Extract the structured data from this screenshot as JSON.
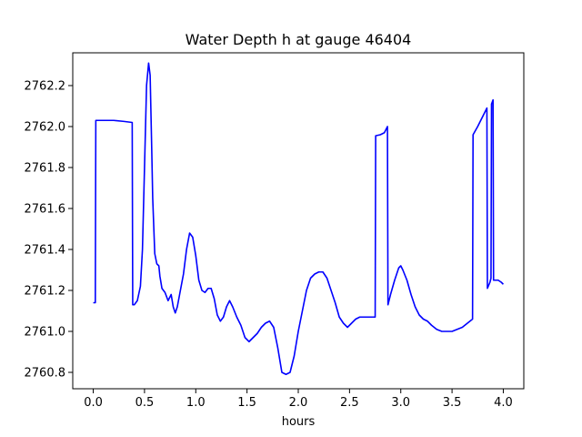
{
  "chart_data": {
    "type": "line",
    "title": "Water Depth h at gauge 46404",
    "xlabel": "hours",
    "ylabel": "",
    "xlim": [
      -0.2,
      4.2
    ],
    "ylim": [
      2760.72,
      2762.36
    ],
    "grid": false,
    "xticks": [
      0.0,
      0.5,
      1.0,
      1.5,
      2.0,
      2.5,
      3.0,
      3.5,
      4.0
    ],
    "xtick_labels": [
      "0.0",
      "0.5",
      "1.0",
      "1.5",
      "2.0",
      "2.5",
      "3.0",
      "3.5",
      "4.0"
    ],
    "yticks": [
      2760.8,
      2761.0,
      2761.2,
      2761.4,
      2761.6,
      2761.8,
      2762.0,
      2762.2
    ],
    "ytick_labels": [
      "2760.8",
      "2761.0",
      "2761.2",
      "2761.4",
      "2761.6",
      "2761.8",
      "2762.0",
      "2762.2"
    ],
    "series": [
      {
        "color": "#0000ff",
        "x": [
          0.0,
          0.02,
          0.025,
          0.1,
          0.2,
          0.3,
          0.38,
          0.385,
          0.4,
          0.43,
          0.46,
          0.48,
          0.5,
          0.52,
          0.54,
          0.555,
          0.57,
          0.58,
          0.6,
          0.62,
          0.64,
          0.65,
          0.67,
          0.7,
          0.73,
          0.76,
          0.78,
          0.8,
          0.82,
          0.85,
          0.88,
          0.91,
          0.94,
          0.97,
          1.0,
          1.03,
          1.06,
          1.09,
          1.12,
          1.15,
          1.18,
          1.21,
          1.24,
          1.27,
          1.3,
          1.33,
          1.36,
          1.4,
          1.44,
          1.48,
          1.52,
          1.56,
          1.6,
          1.64,
          1.68,
          1.72,
          1.76,
          1.8,
          1.84,
          1.88,
          1.92,
          1.96,
          2.0,
          2.04,
          2.08,
          2.12,
          2.16,
          2.2,
          2.24,
          2.28,
          2.32,
          2.36,
          2.4,
          2.44,
          2.48,
          2.52,
          2.56,
          2.6,
          2.64,
          2.68,
          2.72,
          2.75,
          2.755,
          2.8,
          2.84,
          2.87,
          2.875,
          2.9,
          2.94,
          2.98,
          3.0,
          3.02,
          3.06,
          3.1,
          3.14,
          3.18,
          3.22,
          3.26,
          3.3,
          3.35,
          3.4,
          3.45,
          3.5,
          3.55,
          3.6,
          3.65,
          3.7,
          3.705,
          3.75,
          3.8,
          3.84,
          3.845,
          3.87,
          3.88,
          3.885,
          3.9,
          3.905,
          3.91,
          3.92,
          3.95,
          3.98,
          4.0
        ],
        "y": [
          2761.14,
          2761.14,
          2762.03,
          2762.03,
          2762.03,
          2762.025,
          2762.02,
          2761.13,
          2761.13,
          2761.15,
          2761.22,
          2761.4,
          2761.8,
          2762.2,
          2762.31,
          2762.25,
          2761.9,
          2761.65,
          2761.38,
          2761.33,
          2761.32,
          2761.27,
          2761.21,
          2761.19,
          2761.15,
          2761.18,
          2761.12,
          2761.09,
          2761.12,
          2761.2,
          2761.28,
          2761.4,
          2761.48,
          2761.46,
          2761.37,
          2761.25,
          2761.2,
          2761.19,
          2761.21,
          2761.21,
          2761.16,
          2761.08,
          2761.05,
          2761.07,
          2761.12,
          2761.15,
          2761.12,
          2761.07,
          2761.03,
          2760.97,
          2760.95,
          2760.97,
          2760.99,
          2761.02,
          2761.04,
          2761.05,
          2761.02,
          2760.92,
          2760.8,
          2760.79,
          2760.8,
          2760.88,
          2761.0,
          2761.1,
          2761.2,
          2761.26,
          2761.28,
          2761.29,
          2761.29,
          2761.26,
          2761.2,
          2761.14,
          2761.07,
          2761.04,
          2761.02,
          2761.04,
          2761.06,
          2761.07,
          2761.07,
          2761.07,
          2761.07,
          2761.07,
          2761.955,
          2761.96,
          2761.97,
          2762.0,
          2761.13,
          2761.18,
          2761.25,
          2761.31,
          2761.32,
          2761.3,
          2761.25,
          2761.18,
          2761.12,
          2761.08,
          2761.06,
          2761.05,
          2761.03,
          2761.01,
          2761.0,
          2761.0,
          2761.0,
          2761.01,
          2761.02,
          2761.04,
          2761.06,
          2761.96,
          2762.0,
          2762.05,
          2762.09,
          2761.21,
          2761.24,
          2761.26,
          2762.11,
          2762.13,
          2761.25,
          2761.25,
          2761.25,
          2761.25,
          2761.24,
          2761.23
        ]
      }
    ]
  }
}
